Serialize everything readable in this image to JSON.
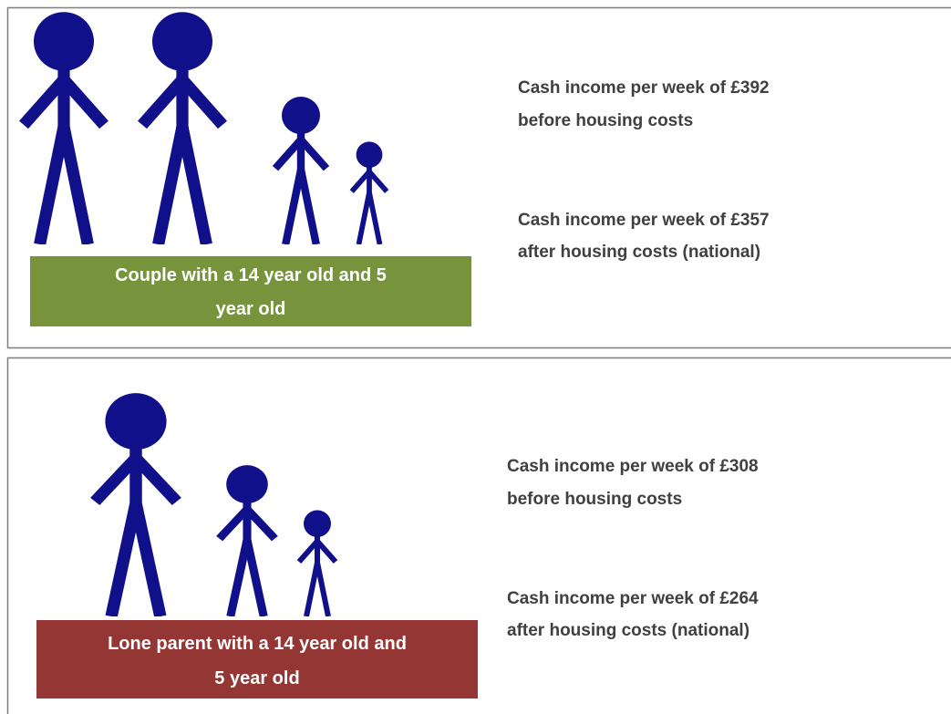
{
  "panels": [
    {
      "label": [
        "Couple with a 14 year old and 5",
        "year old"
      ],
      "statements": [
        [
          "Cash income per week of £392",
          "before housing costs"
        ],
        [
          "Cash income per week of £357",
          "after housing costs (national)"
        ]
      ]
    },
    {
      "label": [
        "Lone parent with a 14 year old and",
        "5 year old"
      ],
      "statements": [
        [
          "Cash income per week of £308",
          "before housing costs"
        ],
        [
          "Cash income per week of £264",
          "after housing costs (national)"
        ]
      ]
    }
  ]
}
